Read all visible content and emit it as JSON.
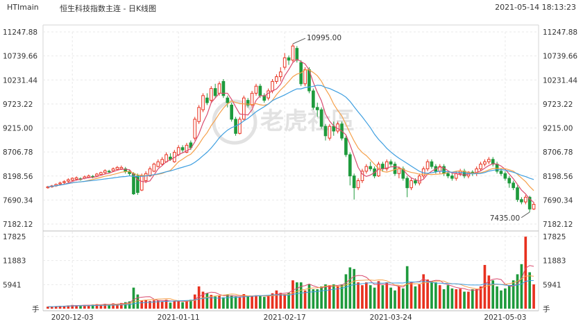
{
  "header": {
    "symbol": "HTImain",
    "name": "恒生科技指数主连 - 日K线图",
    "datetime": "2021-05-14 18:13:23"
  },
  "watermark": "老虎社區",
  "colors": {
    "up": "#e8311f",
    "down": "#1e9a3c",
    "ma5": "#d94b6f",
    "ma10": "#f5a04a",
    "ma20": "#3d9ee0",
    "grid": "#e9e9e9"
  },
  "chart_data": {
    "type": "candlestick",
    "price_ticks": [
      "11247.88",
      "10739.66",
      "10231.44",
      "9723.22",
      "9215.00",
      "8706.78",
      "8198.56",
      "7690.34",
      "7182.12"
    ],
    "price_range": [
      7182.12,
      11247.88
    ],
    "volume_ticks": [
      "17825",
      "11883",
      "5941",
      "手"
    ],
    "volume_range": [
      0,
      17825
    ],
    "x_labels": [
      "2020-12-03",
      "2021-01-11",
      "2021-02-17",
      "2021-03-24",
      "2021-05-03"
    ],
    "annotations": {
      "high": "10995.00",
      "low": "7435.00"
    },
    "candles": [
      [
        7950,
        7970,
        7930,
        7990
      ],
      [
        7970,
        7990,
        7950,
        8010
      ],
      [
        7990,
        8020,
        7970,
        8040
      ],
      [
        8030,
        8050,
        8010,
        8080
      ],
      [
        8060,
        8080,
        8030,
        8110
      ],
      [
        8090,
        8120,
        8060,
        8150
      ],
      [
        8110,
        8150,
        8090,
        8170
      ],
      [
        8130,
        8160,
        8100,
        8190
      ],
      [
        8140,
        8130,
        8100,
        8170
      ],
      [
        8150,
        8180,
        8130,
        8210
      ],
      [
        8170,
        8200,
        8150,
        8230
      ],
      [
        8190,
        8180,
        8150,
        8220
      ],
      [
        8200,
        8240,
        8180,
        8260
      ],
      [
        8230,
        8270,
        8210,
        8290
      ],
      [
        8270,
        8310,
        8240,
        8340
      ],
      [
        8300,
        8290,
        8260,
        8330
      ],
      [
        8310,
        8350,
        8290,
        8380
      ],
      [
        8340,
        8380,
        8320,
        8410
      ],
      [
        8350,
        8380,
        8330,
        8420
      ],
      [
        8350,
        8300,
        8250,
        8390
      ],
      [
        8300,
        8250,
        8200,
        8320
      ],
      [
        8250,
        7820,
        7800,
        8280
      ],
      [
        8200,
        7850,
        7800,
        8250
      ],
      [
        7900,
        8200,
        7880,
        8250
      ],
      [
        8100,
        8250,
        8050,
        8300
      ],
      [
        8200,
        8350,
        8180,
        8400
      ],
      [
        8300,
        8450,
        8280,
        8480
      ],
      [
        8400,
        8500,
        8380,
        8550
      ],
      [
        8450,
        8550,
        8420,
        8600
      ],
      [
        8500,
        8650,
        8480,
        8700
      ],
      [
        8600,
        8550,
        8520,
        8680
      ],
      [
        8500,
        8700,
        8480,
        8750
      ],
      [
        8650,
        8800,
        8620,
        8850
      ],
      [
        8800,
        8750,
        8700,
        8850
      ],
      [
        8700,
        8850,
        8680,
        8900
      ],
      [
        8900,
        8800,
        8750,
        8950
      ],
      [
        9000,
        9400,
        8950,
        9450
      ],
      [
        9350,
        9650,
        9300,
        9700
      ],
      [
        9600,
        9900,
        9550,
        9950
      ],
      [
        9850,
        9750,
        9700,
        9950
      ],
      [
        9800,
        10050,
        9750,
        10100
      ],
      [
        10050,
        9900,
        9850,
        10150
      ],
      [
        9950,
        10150,
        9900,
        10200
      ],
      [
        10200,
        9900,
        9850,
        10250
      ],
      [
        9850,
        9750,
        9650,
        9900
      ],
      [
        9700,
        9400,
        9350,
        9750
      ],
      [
        9400,
        9100,
        9050,
        9450
      ],
      [
        9100,
        9400,
        9080,
        9450
      ],
      [
        9400,
        9850,
        9380,
        9900
      ],
      [
        9800,
        9700,
        9650,
        9850
      ],
      [
        9700,
        9950,
        9650,
        10000
      ],
      [
        9950,
        10100,
        9900,
        10150
      ],
      [
        10100,
        9900,
        9850,
        10150
      ],
      [
        9900,
        9800,
        9750,
        9950
      ],
      [
        9850,
        10000,
        9800,
        10050
      ],
      [
        10000,
        10200,
        9950,
        10250
      ],
      [
        10200,
        10300,
        10150,
        10350
      ],
      [
        10300,
        10400,
        10200,
        10500
      ],
      [
        10500,
        10700,
        10450,
        10800
      ],
      [
        10700,
        10650,
        10550,
        10750
      ],
      [
        10650,
        10950,
        10600,
        10995
      ],
      [
        10900,
        10650,
        10600,
        10950
      ],
      [
        10600,
        10150,
        10100,
        10650
      ],
      [
        10150,
        10450,
        10100,
        10500
      ],
      [
        10450,
        10000,
        9950,
        10500
      ],
      [
        10000,
        9650,
        9600,
        10050
      ],
      [
        9650,
        9600,
        9450,
        9750
      ],
      [
        9600,
        9250,
        9200,
        9650
      ],
      [
        9250,
        9050,
        8950,
        9300
      ],
      [
        9000,
        9250,
        8950,
        9300
      ],
      [
        9250,
        9150,
        9050,
        9350
      ],
      [
        9150,
        9300,
        9100,
        9350
      ],
      [
        9300,
        9000,
        8950,
        9350
      ],
      [
        9000,
        8650,
        8600,
        9050
      ],
      [
        8650,
        8200,
        8000,
        8700
      ],
      [
        8200,
        7950,
        7700,
        8250
      ],
      [
        7950,
        8100,
        7900,
        8150
      ],
      [
        8100,
        8300,
        8050,
        8350
      ],
      [
        8300,
        8400,
        8250,
        8450
      ],
      [
        8400,
        8350,
        8300,
        8500
      ],
      [
        8350,
        8200,
        8150,
        8400
      ],
      [
        8200,
        8450,
        8180,
        8500
      ],
      [
        8450,
        8350,
        8300,
        8500
      ],
      [
        8350,
        8500,
        8300,
        8550
      ],
      [
        8500,
        8450,
        8400,
        8550
      ],
      [
        8450,
        8250,
        8200,
        8500
      ],
      [
        8250,
        8350,
        8150,
        8400
      ],
      [
        8350,
        8150,
        8100,
        8400
      ],
      [
        8150,
        7950,
        7750,
        8200
      ],
      [
        7950,
        8100,
        7900,
        8150
      ],
      [
        8100,
        8050,
        8000,
        8150
      ],
      [
        8050,
        8200,
        8000,
        8250
      ],
      [
        8200,
        8350,
        8150,
        8400
      ],
      [
        8350,
        8500,
        8300,
        8550
      ],
      [
        8500,
        8400,
        8350,
        8550
      ],
      [
        8400,
        8300,
        8250,
        8450
      ],
      [
        8300,
        8400,
        8250,
        8450
      ],
      [
        8400,
        8250,
        8200,
        8450
      ],
      [
        8250,
        8200,
        8150,
        8300
      ],
      [
        8200,
        8150,
        8100,
        8250
      ],
      [
        8150,
        8250,
        8100,
        8300
      ],
      [
        8250,
        8300,
        8200,
        8350
      ],
      [
        8300,
        8200,
        8150,
        8350
      ],
      [
        8200,
        8280,
        8150,
        8300
      ],
      [
        8280,
        8250,
        8200,
        8320
      ],
      [
        8250,
        8350,
        8200,
        8400
      ],
      [
        8350,
        8450,
        8300,
        8500
      ],
      [
        8450,
        8500,
        8400,
        8550
      ],
      [
        8500,
        8550,
        8450,
        8600
      ],
      [
        8550,
        8450,
        8400,
        8600
      ],
      [
        8450,
        8300,
        8250,
        8500
      ],
      [
        8300,
        8250,
        8200,
        8350
      ],
      [
        8250,
        8150,
        8100,
        8300
      ],
      [
        8150,
        8050,
        7950,
        8200
      ],
      [
        8050,
        7950,
        7900,
        8100
      ],
      [
        7950,
        7700,
        7650,
        8000
      ],
      [
        7700,
        7650,
        7600,
        7750
      ],
      [
        7650,
        7750,
        7600,
        7800
      ],
      [
        7750,
        7500,
        7435,
        7780
      ],
      [
        7500,
        7600,
        7480,
        7650
      ]
    ],
    "volumes": [
      500,
      500,
      600,
      700,
      700,
      800,
      900,
      800,
      800,
      900,
      900,
      1000,
      1100,
      1000,
      1200,
      1000,
      1300,
      1200,
      1400,
      1600,
      1800,
      5200,
      3500,
      2000,
      2200,
      1900,
      2100,
      2000,
      1800,
      2200,
      1500,
      1800,
      2000,
      1600,
      2000,
      2200,
      3500,
      5500,
      4200,
      3800,
      3400,
      3000,
      3200,
      2800,
      3400,
      3300,
      3000,
      2800,
      3600,
      3200,
      3000,
      3300,
      3100,
      2900,
      3300,
      3800,
      4500,
      3900,
      3600,
      3900,
      7000,
      6500,
      6500,
      4500,
      6000,
      4800,
      4800,
      5500,
      6000,
      5800,
      6000,
      5500,
      6000,
      8500,
      10200,
      9800,
      6500,
      5800,
      6500,
      5800,
      5200,
      6800,
      5800,
      6500,
      5200,
      4500,
      5500,
      5000,
      10500,
      6500,
      5500,
      6000,
      8500,
      7200,
      6800,
      6500,
      5800,
      4800,
      5800,
      5000,
      4800,
      4900,
      4200,
      4200,
      4800,
      4800,
      5500,
      10800,
      8200,
      7000,
      5500,
      4500,
      5000,
      5800,
      7000,
      8500,
      11000,
      17800,
      9000,
      6000
    ]
  }
}
